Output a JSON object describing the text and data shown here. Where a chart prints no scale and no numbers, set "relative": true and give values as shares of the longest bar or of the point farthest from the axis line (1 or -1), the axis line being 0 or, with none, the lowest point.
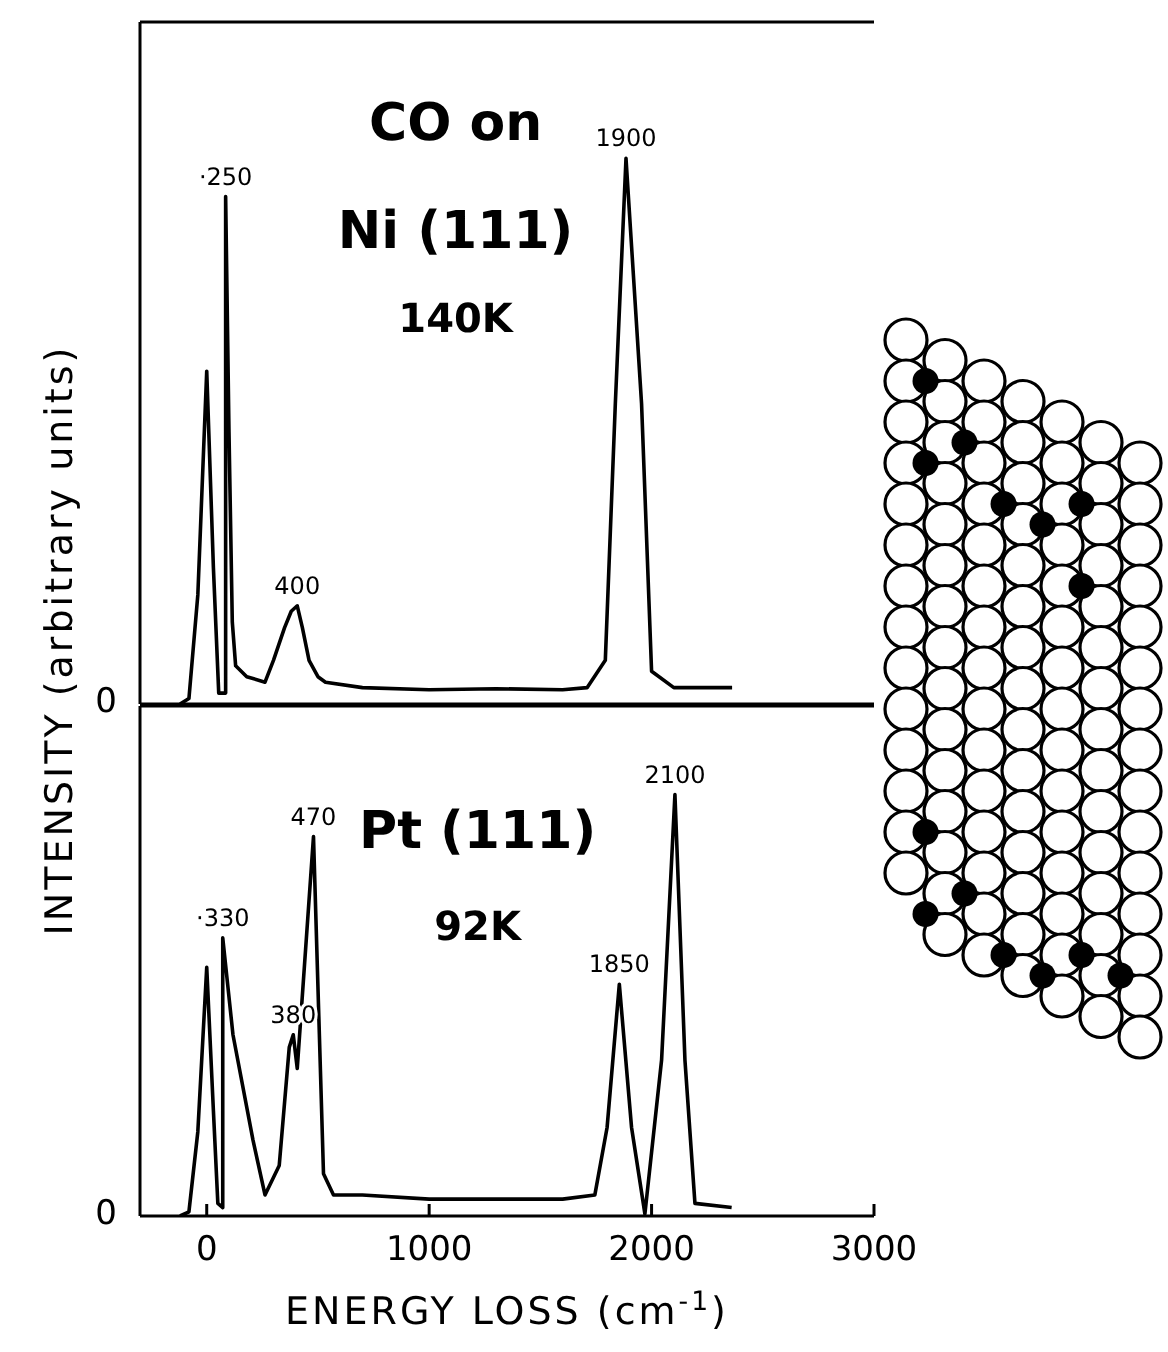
{
  "chart_data": [
    {
      "type": "line",
      "relative": true,
      "tick_labels": "y",
      "ylabel": "INTENSITY (arbitrary units)",
      "color": "#000000",
      "x": [
        -120,
        -80,
        -40,
        0,
        30,
        54,
        85,
        85,
        100,
        115,
        130,
        180,
        262,
        300,
        350,
        380,
        407,
        430,
        460,
        500,
        534,
        700,
        1000,
        1300,
        1600,
        1710,
        1792,
        1837,
        1885,
        1955,
        2000,
        2100,
        2250,
        2362
      ],
      "values": [
        0,
        0.01,
        0.2,
        0.61,
        0.25,
        0.02,
        0.02,
        0.93,
        0.5,
        0.15,
        0.07,
        0.05,
        0.04,
        0.08,
        0.14,
        0.17,
        0.18,
        0.14,
        0.08,
        0.05,
        0.04,
        0.03,
        0.026,
        0.028,
        0.026,
        0.03,
        0.08,
        0.55,
        1,
        0.55,
        0.06,
        0.03,
        0.03,
        0.03
      ],
      "xlim": [
        -300,
        3000
      ],
      "xticks": [
        0,
        1000,
        2000,
        3000
      ],
      "annotations": [
        "0",
        "CO on",
        "Ni (111)",
        "140K",
        {
          "text": "·250",
          "x": 85,
          "y": 0.93
        },
        {
          "text": "400",
          "x": 407,
          "y": 0.18
        },
        {
          "text": "1900",
          "x": 1885,
          "y": 1
        }
      ]
    },
    {
      "type": "line",
      "relative": true,
      "xlabel": "ENERGY LOSS (cm$^{-1}$)",
      "color": "#000000",
      "x": [
        -120,
        -80,
        -40,
        0,
        30,
        50,
        72,
        72,
        118,
        208,
        262,
        326,
        371,
        389,
        407,
        480,
        525,
        570,
        700,
        1000,
        1300,
        1600,
        1745,
        1800,
        1855,
        1910,
        1970,
        2045,
        2105,
        2150,
        2195,
        2360
      ],
      "values": [
        0,
        0.01,
        0.2,
        0.59,
        0.25,
        0.03,
        0.02,
        0.66,
        0.43,
        0.18,
        0.05,
        0.12,
        0.4,
        0.43,
        0.35,
        0.9,
        0.1,
        0.05,
        0.05,
        0.04,
        0.04,
        0.04,
        0.05,
        0.21,
        0.55,
        0.21,
        0.005,
        0.37,
        1,
        0.37,
        0.03,
        0.02
      ],
      "xlim": [
        -300,
        3000
      ],
      "xticks": [
        0,
        1000,
        2000,
        3000
      ],
      "annotations": [
        "0",
        "Pt (111)",
        "92K",
        {
          "text": "·330",
          "x": 72,
          "y": 0.66
        },
        {
          "text": "380",
          "x": 389,
          "y": 0.43
        },
        {
          "text": "470",
          "x": 480,
          "y": 0.9
        },
        {
          "text": "1850",
          "x": 1855,
          "y": 0.55
        },
        {
          "text": "2100",
          "x": 2105,
          "y": 1
        }
      ]
    }
  ]
}
